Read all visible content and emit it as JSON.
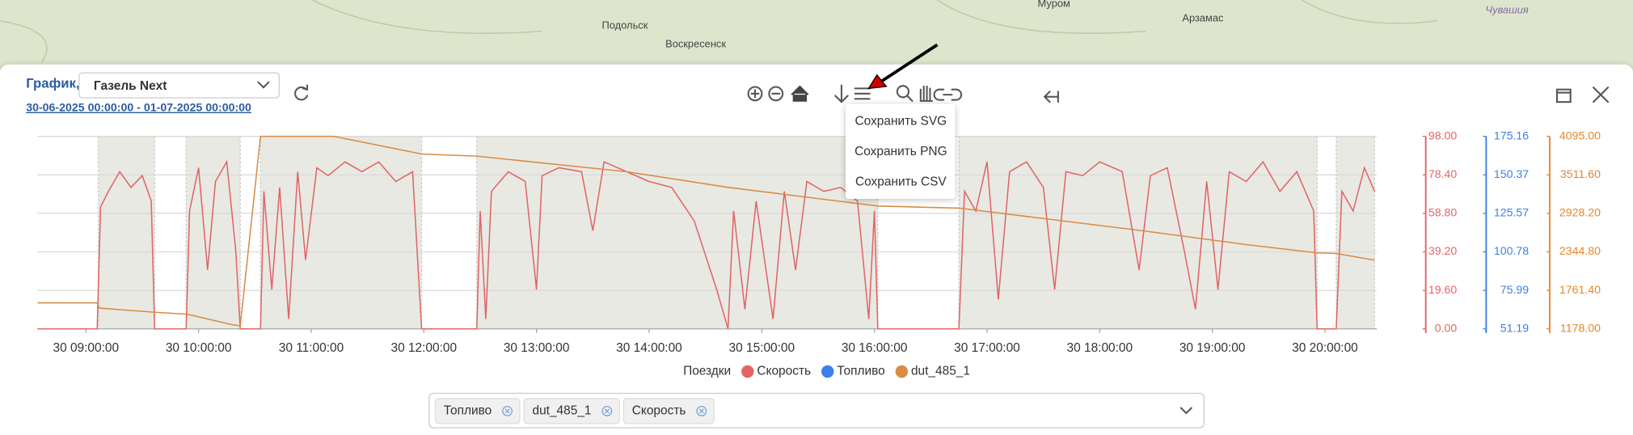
{
  "map": {
    "labels": [
      "Подольск",
      "Воскресенск",
      "Муром",
      "Арзамас",
      "Чувашия"
    ]
  },
  "header": {
    "title": "График,",
    "vehicle": "Газель Next",
    "period": "30-06-2025 00:00:00 - 01-07-2025 00:00:00"
  },
  "export_menu": {
    "items": [
      "Сохранить SVG",
      "Сохранить PNG",
      "Сохранить CSV"
    ]
  },
  "chart": {
    "type": "line",
    "xlim": [
      8.57,
      20.46
    ],
    "xticks": [
      {
        "value": 9,
        "label": "30 09:00:00"
      },
      {
        "value": 10,
        "label": "30 10:00:00"
      },
      {
        "value": 11,
        "label": "30 11:00:00"
      },
      {
        "value": 12,
        "label": "30 12:00:00"
      },
      {
        "value": 13,
        "label": "30 13:00:00"
      },
      {
        "value": 14,
        "label": "30 14:00:00"
      },
      {
        "value": 15,
        "label": "30 15:00:00"
      },
      {
        "value": 16,
        "label": "30 16:00:00"
      },
      {
        "value": 17,
        "label": "30 17:00:00"
      },
      {
        "value": 18,
        "label": "30 18:00:00"
      },
      {
        "value": 19,
        "label": "30 19:00:00"
      },
      {
        "value": 20,
        "label": "30 20:00:00"
      }
    ],
    "ylim": [
      0,
      98
    ],
    "yticks": [
      {
        "value": 0,
        "label": "0.00"
      },
      {
        "value": 19.6,
        "label": "19.60"
      },
      {
        "value": 39.2,
        "label": "39.20"
      },
      {
        "value": 58.8,
        "label": "58.80"
      },
      {
        "value": 78.4,
        "label": "78.40"
      },
      {
        "value": 98,
        "label": "98.00"
      }
    ],
    "y2lim": [
      51.19,
      175.16
    ],
    "y2ticks": [
      {
        "value": 51.19,
        "label": "51.19"
      },
      {
        "value": 75.99,
        "label": "75.99"
      },
      {
        "value": 100.78,
        "label": "100.78"
      },
      {
        "value": 125.57,
        "label": "125.57"
      },
      {
        "value": 150.37,
        "label": "150.37"
      },
      {
        "value": 175.16,
        "label": "175.16"
      }
    ],
    "y3lim": [
      1178,
      4095
    ],
    "y3ticks": [
      {
        "value": 1178,
        "label": "1178.00"
      },
      {
        "value": 1761.4,
        "label": "1761.40"
      },
      {
        "value": 2344.8,
        "label": "2344.80"
      },
      {
        "value": 2928.2,
        "label": "2928.20"
      },
      {
        "value": 3511.6,
        "label": "3511.60"
      },
      {
        "value": 4095,
        "label": "4095.00"
      }
    ],
    "axis_colors": {
      "y": "#e06666",
      "y2": "#3b82e6",
      "y3": "#e8872a"
    },
    "grid": true,
    "trips_label": "Поездки",
    "trips_color": "#e9e9e3",
    "trips": [
      [
        9.11,
        9.61
      ],
      [
        9.89,
        10.37
      ],
      [
        10.55,
        11.98
      ],
      [
        12.47,
        16.03
      ],
      [
        16.75,
        19.93
      ],
      [
        20.1,
        20.44
      ]
    ],
    "series": [
      {
        "name": "Скорость",
        "color": "#e06666",
        "axis": "y",
        "x": [
          8.57,
          9.1,
          9.13,
          9.2,
          9.3,
          9.4,
          9.5,
          9.58,
          9.61,
          9.89,
          9.92,
          10.0,
          10.08,
          10.15,
          10.25,
          10.33,
          10.37,
          10.55,
          10.58,
          10.65,
          10.72,
          10.8,
          10.88,
          10.95,
          11.05,
          11.15,
          11.3,
          11.45,
          11.6,
          11.75,
          11.9,
          11.98,
          12.47,
          12.5,
          12.55,
          12.6,
          12.75,
          12.9,
          13.0,
          13.05,
          13.2,
          13.4,
          13.5,
          13.6,
          13.8,
          14.0,
          14.2,
          14.4,
          14.6,
          14.7,
          14.75,
          14.85,
          14.95,
          15.1,
          15.2,
          15.3,
          15.4,
          15.55,
          15.7,
          15.85,
          15.95,
          16.0,
          16.03,
          16.75,
          16.8,
          16.9,
          17.0,
          17.1,
          17.2,
          17.35,
          17.5,
          17.6,
          17.7,
          17.85,
          18.0,
          18.2,
          18.35,
          18.45,
          18.6,
          18.75,
          18.85,
          18.95,
          19.05,
          19.15,
          19.3,
          19.45,
          19.6,
          19.75,
          19.9,
          19.93,
          20.1,
          20.15,
          20.25,
          20.35,
          20.44
        ],
        "values": [
          0,
          0,
          62,
          70,
          80,
          72,
          78,
          65,
          0,
          0,
          60,
          82,
          30,
          75,
          85,
          40,
          0,
          0,
          70,
          20,
          72,
          5,
          80,
          35,
          82,
          78,
          85,
          80,
          85,
          75,
          80,
          0,
          0,
          60,
          5,
          70,
          80,
          75,
          20,
          78,
          82,
          80,
          50,
          85,
          80,
          75,
          72,
          55,
          20,
          0,
          60,
          10,
          65,
          5,
          70,
          30,
          75,
          70,
          72,
          65,
          5,
          60,
          0,
          0,
          70,
          60,
          85,
          15,
          80,
          85,
          72,
          20,
          80,
          78,
          85,
          80,
          30,
          78,
          82,
          40,
          10,
          75,
          20,
          80,
          75,
          85,
          70,
          80,
          60,
          0,
          0,
          70,
          60,
          82,
          70
        ]
      },
      {
        "name": "Топливо",
        "color": "#3b82e6",
        "axis": "y2",
        "x": [],
        "values": []
      },
      {
        "name": "dut_485_1",
        "color": "#d98c45",
        "axis": "y3",
        "x": [
          8.57,
          9.1,
          9.12,
          9.6,
          9.9,
          10.3,
          10.37,
          10.55,
          11.2,
          11.98,
          12.47,
          13.8,
          14.7,
          16.03,
          16.75,
          17.5,
          18.4,
          19.3,
          19.93,
          20.1,
          20.44
        ],
        "values": [
          1572,
          1572,
          1493,
          1430,
          1400,
          1240,
          1225,
          4095,
          4095,
          3827,
          3795,
          3559,
          3322,
          3039,
          3007,
          2850,
          2660,
          2455,
          2329,
          2320,
          2219
        ]
      }
    ]
  },
  "filter": {
    "chips": [
      "Топливо",
      "dut_485_1",
      "Скорость"
    ]
  }
}
